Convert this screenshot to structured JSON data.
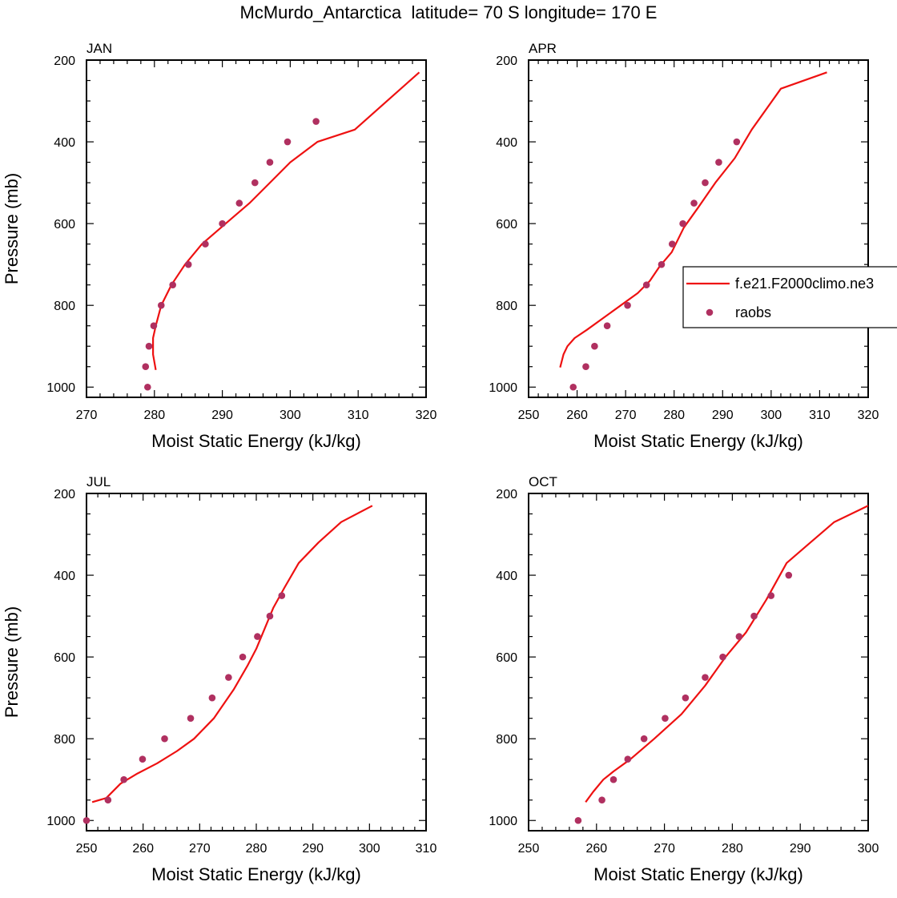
{
  "figure": {
    "title": "McMurdo_Antarctica  latitude= 70 S longitude= 170 E"
  },
  "legend": {
    "model_label": "f.e21.F2000climo.ne3",
    "obs_label": "raobs"
  },
  "colors": {
    "model_line": "#ee1111",
    "obs_marker": "#b03060",
    "axis": "#000000"
  },
  "chart_data": [
    {
      "type": "line",
      "panel_label": "JAN",
      "xlabel": "Moist Static Energy (kJ/kg)",
      "ylabel": "Pressure (mb)",
      "xlim": [
        270,
        320
      ],
      "ylim": [
        200,
        1025
      ],
      "y_inverted": true,
      "xticks": [
        270,
        280,
        290,
        300,
        310,
        320
      ],
      "yticks": [
        200,
        400,
        600,
        800,
        1000
      ],
      "series": [
        {
          "name": "f.e21.F2000climo.ne3",
          "kind": "line",
          "x": [
            280.2,
            279.8,
            279.8,
            280.2,
            281.0,
            282.5,
            284.5,
            287.0,
            290.5,
            294.0,
            297.0,
            300.0,
            304.0,
            309.5,
            319.0
          ],
          "y": [
            958,
            920,
            880,
            850,
            800,
            750,
            700,
            650,
            600,
            550,
            500,
            450,
            400,
            370,
            230
          ]
        },
        {
          "name": "raobs",
          "kind": "scatter",
          "x": [
            279.0,
            278.7,
            279.2,
            279.9,
            281.0,
            282.7,
            285.0,
            287.5,
            290.0,
            292.5,
            294.8,
            297.0,
            299.6,
            303.8
          ],
          "y": [
            1000,
            950,
            900,
            850,
            800,
            750,
            700,
            650,
            600,
            550,
            500,
            450,
            400,
            350
          ]
        }
      ]
    },
    {
      "type": "line",
      "panel_label": "APR",
      "xlabel": "Moist Static Energy (kJ/kg)",
      "ylabel": "",
      "xlim": [
        250,
        320
      ],
      "ylim": [
        200,
        1025
      ],
      "y_inverted": true,
      "xticks": [
        250,
        260,
        270,
        280,
        290,
        300,
        310,
        320
      ],
      "yticks": [
        200,
        400,
        600,
        800,
        1000
      ],
      "series": [
        {
          "name": "f.e21.F2000climo.ne3",
          "kind": "line",
          "x": [
            256.5,
            257.2,
            258.0,
            259.5,
            262.0,
            265.5,
            269.0,
            272.5,
            275.0,
            277.0,
            279.5,
            282.0,
            285.0,
            288.5,
            292.5,
            296.0,
            302.0,
            311.5
          ],
          "y": [
            952,
            920,
            900,
            880,
            860,
            830,
            800,
            770,
            740,
            705,
            670,
            610,
            560,
            500,
            440,
            370,
            270,
            230
          ]
        },
        {
          "name": "raobs",
          "kind": "scatter",
          "x": [
            259.2,
            261.8,
            263.6,
            266.2,
            270.4,
            274.3,
            277.4,
            279.6,
            281.8,
            284.1,
            286.4,
            289.2,
            292.9
          ],
          "y": [
            1000,
            950,
            900,
            850,
            800,
            750,
            700,
            650,
            600,
            550,
            500,
            450,
            400
          ]
        }
      ]
    },
    {
      "type": "line",
      "panel_label": "JUL",
      "xlabel": "Moist Static Energy (kJ/kg)",
      "ylabel": "Pressure (mb)",
      "xlim": [
        250,
        310
      ],
      "ylim": [
        200,
        1025
      ],
      "y_inverted": true,
      "xticks": [
        250,
        260,
        270,
        280,
        290,
        300,
        310
      ],
      "yticks": [
        200,
        400,
        600,
        800,
        1000
      ],
      "series": [
        {
          "name": "f.e21.F2000climo.ne3",
          "kind": "line",
          "x": [
            251.0,
            253.5,
            256.0,
            259.0,
            262.5,
            266.0,
            269.0,
            272.5,
            276.0,
            278.5,
            280.0,
            281.5,
            283.0,
            285.0,
            287.5,
            291.0,
            295.0,
            300.5
          ],
          "y": [
            955,
            945,
            910,
            885,
            860,
            830,
            800,
            750,
            680,
            620,
            580,
            530,
            480,
            430,
            370,
            320,
            270,
            230
          ]
        },
        {
          "name": "raobs",
          "kind": "scatter",
          "x": [
            250.0,
            253.8,
            256.6,
            259.9,
            263.8,
            268.4,
            272.2,
            275.1,
            277.6,
            280.2,
            282.4,
            284.5
          ],
          "y": [
            1000,
            950,
            900,
            850,
            800,
            750,
            700,
            650,
            600,
            550,
            500,
            450
          ]
        }
      ]
    },
    {
      "type": "line",
      "panel_label": "OCT",
      "xlabel": "Moist Static Energy (kJ/kg)",
      "ylabel": "",
      "xlim": [
        250,
        300
      ],
      "ylim": [
        200,
        1025
      ],
      "y_inverted": true,
      "xticks": [
        250,
        260,
        270,
        280,
        290,
        300
      ],
      "yticks": [
        200,
        400,
        600,
        800,
        1000
      ],
      "series": [
        {
          "name": "f.e21.F2000climo.ne3",
          "kind": "line",
          "x": [
            258.4,
            259.5,
            261.0,
            262.5,
            265.0,
            268.5,
            272.5,
            276.0,
            279.0,
            282.0,
            285.0,
            288.0,
            291.5,
            295.0,
            300.0
          ],
          "y": [
            955,
            930,
            900,
            880,
            850,
            800,
            740,
            670,
            600,
            540,
            460,
            370,
            320,
            270,
            230
          ]
        },
        {
          "name": "raobs",
          "kind": "scatter",
          "x": [
            257.3,
            260.8,
            262.5,
            264.6,
            267.0,
            270.1,
            273.1,
            276.0,
            278.6,
            281.0,
            283.2,
            285.7,
            288.3
          ],
          "y": [
            1000,
            950,
            900,
            850,
            800,
            750,
            700,
            650,
            600,
            550,
            500,
            450,
            400
          ]
        }
      ]
    }
  ]
}
